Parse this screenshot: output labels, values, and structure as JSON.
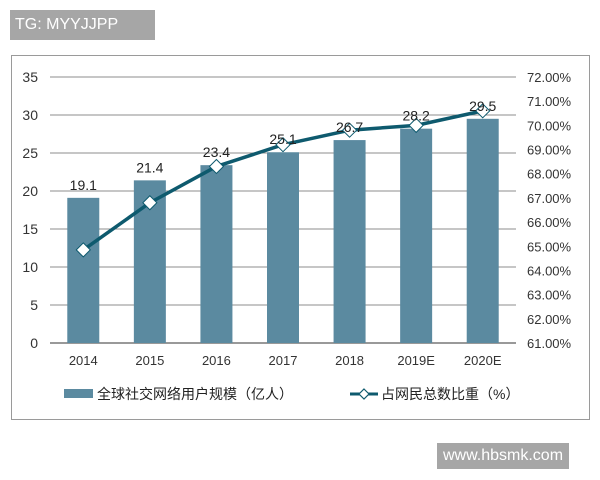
{
  "watermarks": {
    "top": "TG: MYYJJPP",
    "bottom": "www.hbsmk.com"
  },
  "colors": {
    "bar": "#5b8aa0",
    "line": "#0e5a6e",
    "grid": "#8c8c8c",
    "marker_fill": "#ffffff"
  },
  "chart_data": {
    "type": "bar+line",
    "title": "",
    "categories": [
      "2014",
      "2015",
      "2016",
      "2017",
      "2018",
      "2019E",
      "2020E"
    ],
    "series": [
      {
        "name": "全球社交网络用户规模（亿人）",
        "type": "bar",
        "axis": "left",
        "values": [
          19.1,
          21.4,
          23.4,
          25.1,
          26.7,
          28.2,
          29.5
        ],
        "data_labels": [
          "19.1",
          "21.4",
          "23.4",
          "25.1",
          "26.7",
          "28.2",
          "29.5"
        ]
      },
      {
        "name": "占网民总数比重（%）",
        "type": "line",
        "axis": "right",
        "marker": "diamond",
        "values": [
          64.85,
          66.8,
          68.3,
          69.2,
          69.8,
          70.0,
          70.6
        ]
      }
    ],
    "left_axis": {
      "ylim": [
        0,
        35
      ],
      "ticks": [
        "0",
        "5",
        "10",
        "15",
        "20",
        "25",
        "30",
        "35"
      ]
    },
    "right_axis": {
      "ylim": [
        61,
        72
      ],
      "ticks": [
        "61.00%",
        "62.00%",
        "63.00%",
        "64.00%",
        "65.00%",
        "66.00%",
        "67.00%",
        "68.00%",
        "69.00%",
        "70.00%",
        "71.00%",
        "72.00%"
      ]
    },
    "xlabel": "",
    "ylabel": "",
    "grid": true,
    "legend_position": "bottom"
  },
  "legend": {
    "bar_label": "全球社交网络用户规模（亿人）",
    "line_label": "占网民总数比重（%）"
  }
}
